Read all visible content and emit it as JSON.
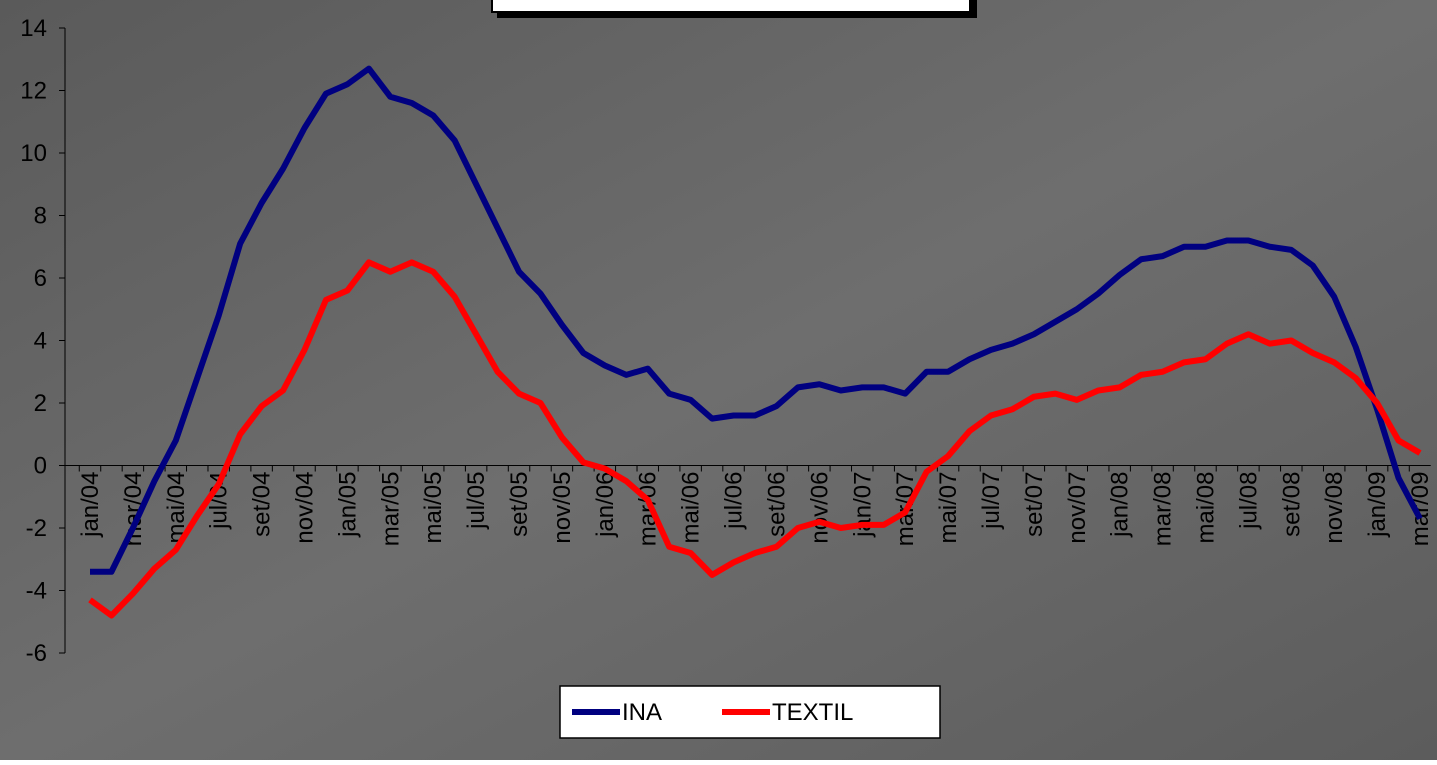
{
  "chart_data": {
    "type": "line",
    "categories": [
      "jan/04",
      null,
      "mar/04",
      null,
      "mai/04",
      null,
      "jul/04",
      null,
      "set/04",
      null,
      "nov/04",
      null,
      "jan/05",
      null,
      "mar/05",
      null,
      "mai/05",
      null,
      "jul/05",
      null,
      "set/05",
      null,
      "nov/05",
      null,
      "jan/06",
      null,
      "mar/06",
      null,
      "mai/06",
      null,
      "jul/06",
      null,
      "set/06",
      null,
      "nov/06",
      null,
      "jan/07",
      null,
      "mar/07",
      null,
      "mai/07",
      null,
      "jul/07",
      null,
      "set/07",
      null,
      "nov/07",
      null,
      "jan/08",
      null,
      "mar/08",
      null,
      "mai/08",
      null,
      "jul/08",
      null,
      "set/08",
      null,
      "nov/08",
      null,
      "jan/09",
      null,
      "mar/09"
    ],
    "series": [
      {
        "name": "INA",
        "color": "#000080",
        "values": [
          -3.4,
          -3.4,
          -2.0,
          -0.5,
          0.8,
          2.8,
          4.8,
          7.1,
          8.4,
          9.5,
          10.8,
          11.9,
          12.2,
          12.7,
          11.8,
          11.6,
          11.2,
          10.4,
          9.0,
          7.6,
          6.2,
          5.5,
          4.5,
          3.6,
          3.2,
          2.9,
          3.1,
          2.3,
          2.1,
          1.5,
          1.6,
          1.6,
          1.9,
          2.5,
          2.6,
          2.4,
          2.5,
          2.5,
          2.3,
          3.0,
          3.0,
          3.4,
          3.7,
          3.9,
          4.2,
          4.6,
          5.0,
          5.5,
          6.1,
          6.6,
          6.7,
          7.0,
          7.0,
          7.2,
          7.2,
          7.0,
          6.9,
          6.4,
          5.4,
          3.8,
          1.8,
          -0.4,
          -1.7
        ]
      },
      {
        "name": "TEXTIL",
        "color": "#ff0000",
        "values": [
          -4.3,
          -4.8,
          -4.1,
          -3.3,
          -2.7,
          -1.6,
          -0.6,
          1.0,
          1.9,
          2.4,
          3.7,
          5.3,
          5.6,
          6.5,
          6.2,
          6.5,
          6.2,
          5.4,
          4.2,
          3.0,
          2.3,
          2.0,
          0.9,
          0.1,
          -0.1,
          -0.5,
          -1.1,
          -2.6,
          -2.8,
          -3.5,
          -3.1,
          -2.8,
          -2.6,
          -2.0,
          -1.8,
          -2.0,
          -1.9,
          -1.9,
          -1.5,
          -0.2,
          0.3,
          1.1,
          1.6,
          1.8,
          2.2,
          2.3,
          2.1,
          2.4,
          2.5,
          2.9,
          3.0,
          3.3,
          3.4,
          3.9,
          4.2,
          3.9,
          4.0,
          3.6,
          3.3,
          2.8,
          2.0,
          0.8,
          0.4
        ]
      }
    ],
    "ylim": [
      -6,
      14
    ],
    "yticks": [
      -6,
      -4,
      -2,
      0,
      2,
      4,
      6,
      8,
      10,
      12,
      14
    ]
  }
}
